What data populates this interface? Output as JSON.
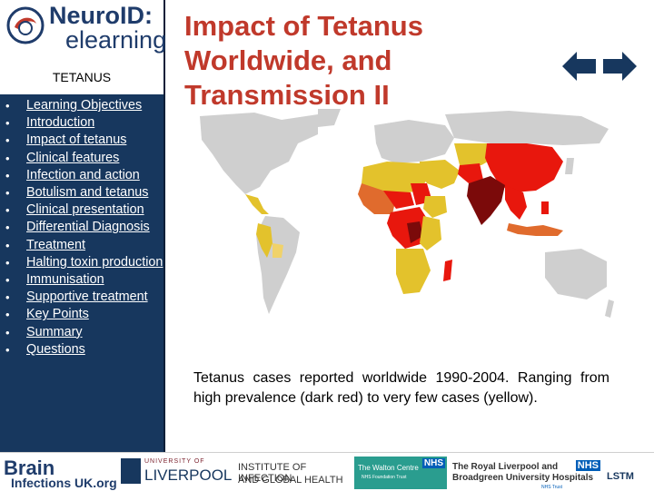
{
  "logo": {
    "line1": "NeuroID:",
    "line2": "elearning"
  },
  "sidebar": {
    "section_title": "TETANUS",
    "items": [
      {
        "label": "Learning Objectives"
      },
      {
        "label": "Introduction"
      },
      {
        "label": "Impact of tetanus"
      },
      {
        "label": "Clinical features"
      },
      {
        "label": "Infection and action"
      },
      {
        "label": "Botulism and tetanus"
      },
      {
        "label": "Clinical presentation"
      },
      {
        "label": "Differential Diagnosis"
      },
      {
        "label": "Treatment"
      },
      {
        "label": "Halting toxin production"
      },
      {
        "label": "Immunisation"
      },
      {
        "label": "Supportive treatment"
      },
      {
        "label": "Key Points"
      },
      {
        "label": "Summary"
      },
      {
        "label": "Questions"
      }
    ],
    "bullet": "•"
  },
  "slide": {
    "title": "Impact of Tetanus Worldwide, and Transmission II",
    "caption": "Tetanus cases reported worldwide 1990-2004. Ranging from high prevalence  (dark red) to very few cases (yellow)."
  },
  "colors": {
    "sidebar_bg": "#17375e",
    "title": "#c0392b",
    "arrow": "#17375e",
    "map_grey": "#cfcfcf",
    "dark_red": "#7b0a0a",
    "red": "#e8170d",
    "orange": "#e06b2d",
    "yellow": "#e3c22c",
    "light_yellow": "#f0d26a"
  },
  "footer": {
    "brain": {
      "word": "Brain",
      "sub": "Infections UK.org"
    },
    "liverpool": {
      "top": "UNIVERSITY OF",
      "main": "LIVERPOOL"
    },
    "iigh": {
      "line1": "INSTITUTE OF INFECTION",
      "line2": "AND GLOBAL HEALTH"
    },
    "walton": {
      "line1": "The Walton Centre",
      "line2": "NHS Foundation Trust",
      "nhs": "NHS"
    },
    "royal": {
      "line1": "The Royal Liverpool and",
      "line2": "Broadgreen University Hospitals",
      "nhs": "NHS",
      "trust": "NHS Trust"
    },
    "lstm": {
      "word": "LSTM"
    }
  }
}
